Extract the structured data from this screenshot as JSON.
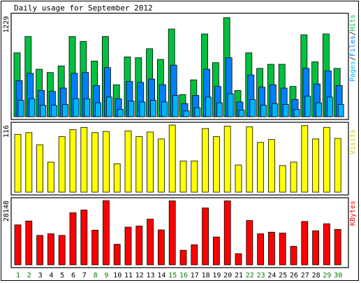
{
  "title": "Daily usage for September 2012",
  "colors": {
    "frame_bg": "#ffffff",
    "pages": "#00b5ff",
    "files": "#0080ff",
    "hits": "#00c040",
    "visits": "#ffff00",
    "kbytes": "#ff0000",
    "weekday_label": "#000000",
    "weekend_label": "#008000"
  },
  "chart_data": [
    {
      "type": "bar",
      "title": "Daily usage for September 2012",
      "ylabel": "Pages/Files/Hits",
      "y_max_label": "1229",
      "ylim": [
        0,
        1229
      ],
      "categories": [
        "1",
        "2",
        "3",
        "4",
        "5",
        "6",
        "7",
        "8",
        "9",
        "10",
        "11",
        "12",
        "13",
        "14",
        "15",
        "16",
        "17",
        "18",
        "19",
        "20",
        "21",
        "22",
        "23",
        "24",
        "25",
        "26",
        "27",
        "28",
        "29",
        "30"
      ],
      "series": [
        {
          "name": "Hits",
          "color": "#00c040",
          "values": [
            780,
            980,
            580,
            540,
            620,
            980,
            920,
            680,
            980,
            390,
            730,
            720,
            830,
            700,
            1070,
            270,
            450,
            1010,
            660,
            1210,
            320,
            780,
            590,
            640,
            640,
            370,
            1000,
            670,
            1010,
            590
          ]
        },
        {
          "name": "Files",
          "color": "#0080ff",
          "values": [
            440,
            530,
            320,
            310,
            350,
            530,
            540,
            380,
            600,
            220,
            430,
            420,
            460,
            390,
            630,
            160,
            260,
            580,
            370,
            720,
            180,
            510,
            360,
            390,
            350,
            210,
            590,
            400,
            560,
            380
          ]
        },
        {
          "name": "Pages",
          "color": "#00b5ff",
          "values": [
            200,
            220,
            140,
            140,
            150,
            220,
            220,
            170,
            240,
            90,
            190,
            180,
            200,
            180,
            260,
            70,
            110,
            240,
            170,
            280,
            80,
            210,
            140,
            160,
            150,
            90,
            250,
            170,
            240,
            150
          ]
        }
      ]
    },
    {
      "type": "bar",
      "ylabel": "Visits",
      "y_max_label": "116",
      "ylim": [
        0,
        116
      ],
      "categories": [
        "1",
        "2",
        "3",
        "4",
        "5",
        "6",
        "7",
        "8",
        "9",
        "10",
        "11",
        "12",
        "13",
        "14",
        "15",
        "16",
        "17",
        "18",
        "19",
        "20",
        "21",
        "22",
        "23",
        "24",
        "25",
        "26",
        "27",
        "28",
        "29",
        "30"
      ],
      "series": [
        {
          "name": "Visits",
          "color": "#ffff00",
          "values": [
            100,
            103,
            82,
            52,
            96,
            108,
            112,
            103,
            105,
            49,
            106,
            96,
            104,
            92,
            116,
            54,
            54,
            110,
            96,
            114,
            47,
            113,
            86,
            91,
            46,
            52,
            115,
            92,
            112,
            93
          ]
        }
      ]
    },
    {
      "type": "bar",
      "ylabel": "KBytes",
      "y_max_label": "28148",
      "ylim": [
        0,
        28148
      ],
      "categories": [
        "1",
        "2",
        "3",
        "4",
        "5",
        "6",
        "7",
        "8",
        "9",
        "10",
        "11",
        "12",
        "13",
        "14",
        "15",
        "16",
        "17",
        "18",
        "19",
        "20",
        "21",
        "22",
        "23",
        "24",
        "25",
        "26",
        "27",
        "28",
        "29",
        "30"
      ],
      "series": [
        {
          "name": "KBytes",
          "color": "#ff0000",
          "values": [
            17500,
            19200,
            12900,
            13600,
            12900,
            22800,
            24000,
            15200,
            28100,
            9000,
            16500,
            17000,
            20000,
            15300,
            28000,
            6400,
            8800,
            24900,
            12200,
            28000,
            4900,
            19400,
            13600,
            14300,
            13900,
            8100,
            19000,
            14900,
            18000,
            15500
          ]
        }
      ]
    }
  ],
  "axis_labels": {
    "days": [
      "1",
      "2",
      "3",
      "4",
      "5",
      "6",
      "7",
      "8",
      "9",
      "10",
      "11",
      "12",
      "13",
      "14",
      "15",
      "16",
      "17",
      "18",
      "19",
      "20",
      "21",
      "22",
      "23",
      "24",
      "25",
      "26",
      "27",
      "28",
      "29",
      "30"
    ],
    "weekend_days": [
      "1",
      "2",
      "8",
      "9",
      "15",
      "16",
      "22",
      "23",
      "29",
      "30"
    ]
  }
}
